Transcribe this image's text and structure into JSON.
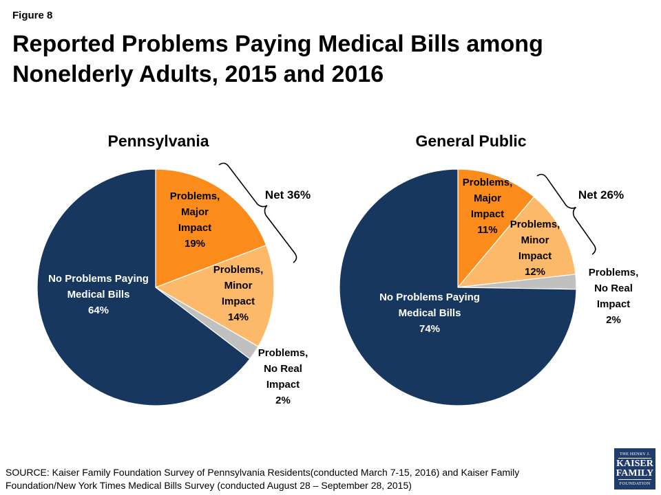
{
  "figure_label": "Figure 8",
  "title": "Reported Problems Paying Medical Bills among Nonelderly Adults, 2015 and 2016",
  "source": "SOURCE: Kaiser Family Foundation Survey of Pennsylvania Residents(conducted March 7-15, 2016) and Kaiser Family Foundation/New York Times Medical Bills Survey (conducted August 28 – September 28, 2015)",
  "logo": {
    "line1": "THE HENRY J.",
    "line2": "KAISER",
    "line3": "FAMILY",
    "line4": "FOUNDATION"
  },
  "colors": {
    "major": "#fb8c1b",
    "minor": "#fdb96a",
    "none": "#c0c0c0",
    "no_problems": "#17375e"
  },
  "chart_data": [
    {
      "type": "pie",
      "title": "Pennsylvania",
      "net_label": "Net 36%",
      "slices": [
        {
          "label_lines": [
            "Problems,",
            "Major",
            "Impact",
            "19%"
          ],
          "value": 19,
          "color": "#fb8c1b"
        },
        {
          "label_lines": [
            "Problems,",
            "Minor",
            "Impact",
            "14%"
          ],
          "value": 14,
          "color": "#fdb96a"
        },
        {
          "label_lines": [
            "Problems,",
            "No Real",
            "Impact",
            "2%"
          ],
          "value": 2,
          "color": "#c0c0c0"
        },
        {
          "label_lines": [
            "No Problems Paying",
            "Medical Bills",
            "64%"
          ],
          "value": 64,
          "color": "#17375e"
        }
      ]
    },
    {
      "type": "pie",
      "title": "General Public",
      "net_label": "Net 26%",
      "slices": [
        {
          "label_lines": [
            "Problems,",
            "Major",
            "Impact",
            "11%"
          ],
          "value": 11,
          "color": "#fb8c1b"
        },
        {
          "label_lines": [
            "Problems,",
            "Minor",
            "Impact",
            "12%"
          ],
          "value": 12,
          "color": "#fdb96a"
        },
        {
          "label_lines": [
            "Problems,",
            "No Real",
            "Impact",
            "2%"
          ],
          "value": 2,
          "color": "#c0c0c0"
        },
        {
          "label_lines": [
            "No Problems Paying",
            "Medical Bills",
            "74%"
          ],
          "value": 74,
          "color": "#17375e"
        }
      ]
    }
  ]
}
